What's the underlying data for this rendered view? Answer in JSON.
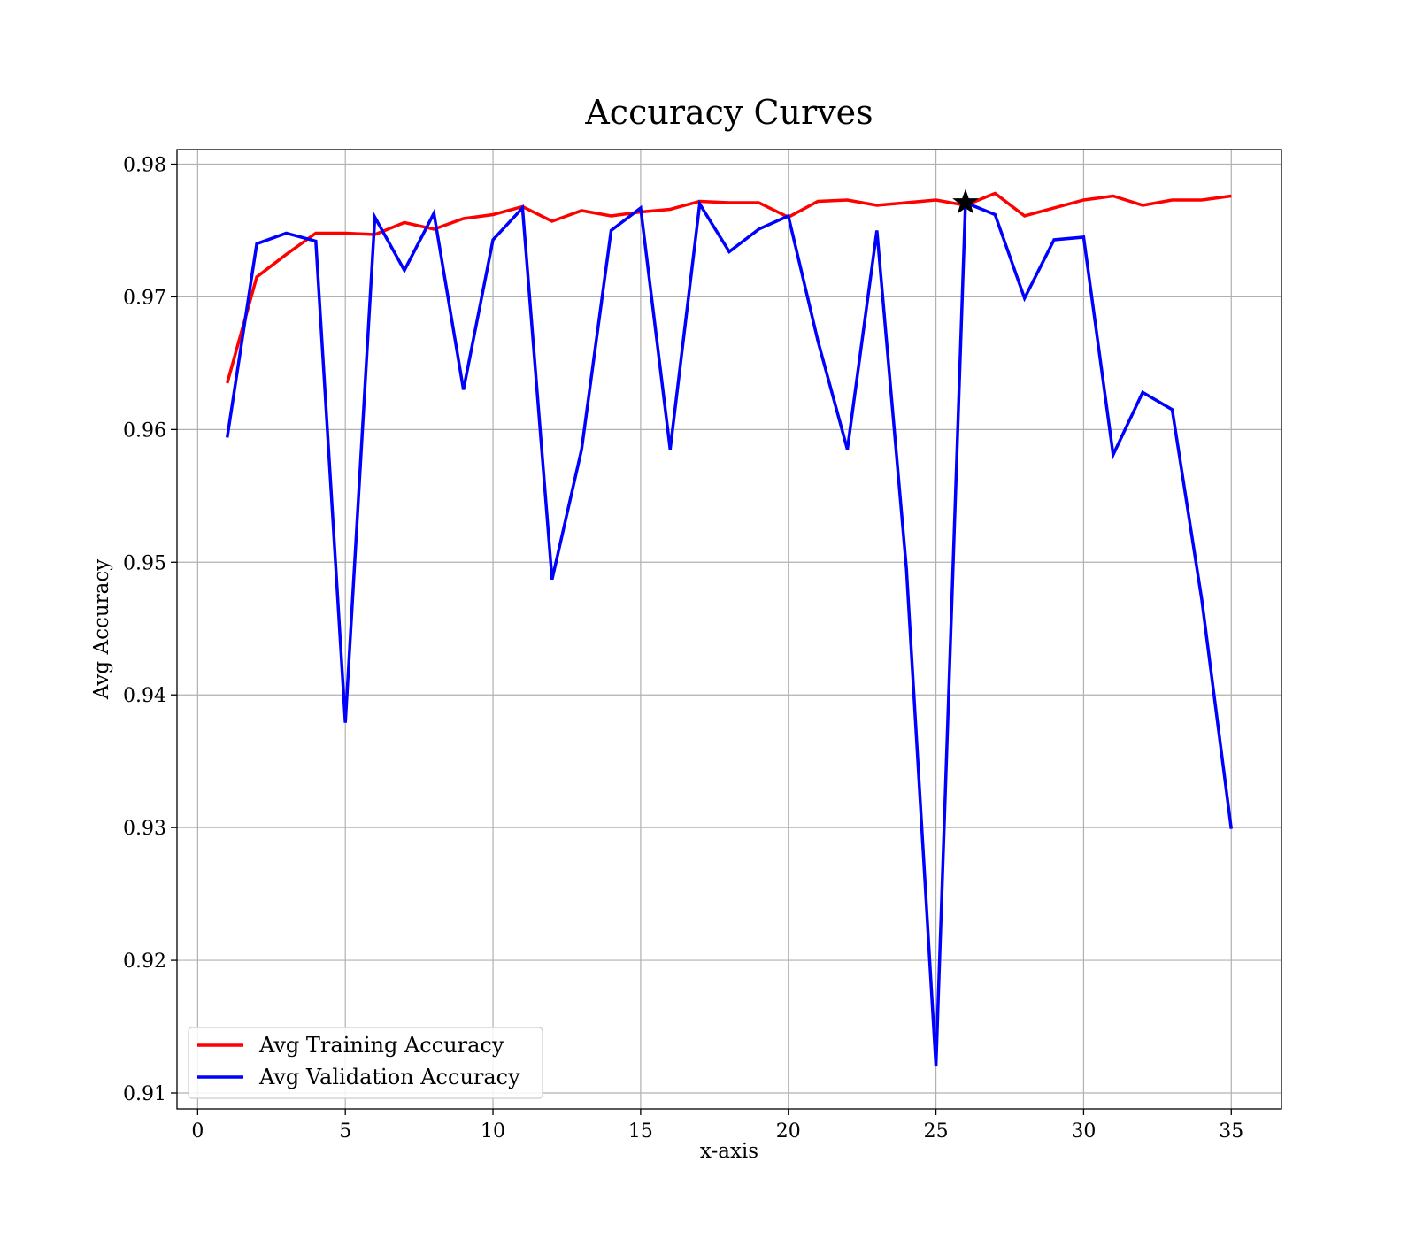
{
  "chart_data": {
    "type": "line",
    "title": "Accuracy Curves",
    "xlabel": "x-axis",
    "ylabel": "Avg Accuracy",
    "xlim": [
      -0.7,
      36.7
    ],
    "ylim": [
      0.9088,
      0.9811
    ],
    "xticks": [
      0,
      5,
      10,
      15,
      20,
      25,
      30,
      35
    ],
    "yticks": [
      0.91,
      0.92,
      0.93,
      0.94,
      0.95,
      0.96,
      0.97,
      0.98
    ],
    "xtick_labels": [
      "0",
      "5",
      "10",
      "15",
      "20",
      "25",
      "30",
      "35"
    ],
    "ytick_labels": [
      "0.91",
      "0.92",
      "0.93",
      "0.94",
      "0.95",
      "0.96",
      "0.97",
      "0.98"
    ],
    "grid": true,
    "legend_position": "lower-left",
    "x": [
      1,
      2,
      3,
      4,
      5,
      6,
      7,
      8,
      9,
      10,
      11,
      12,
      13,
      14,
      15,
      16,
      17,
      18,
      19,
      20,
      21,
      22,
      23,
      24,
      25,
      26,
      27,
      28,
      29,
      30,
      31,
      32,
      33,
      34,
      35
    ],
    "series": [
      {
        "name": "Avg Training Accuracy",
        "color": "#ff0000",
        "values": [
          0.9635,
          0.9715,
          0.9732,
          0.9748,
          0.9748,
          0.9747,
          0.9756,
          0.9751,
          0.9759,
          0.9762,
          0.9768,
          0.9757,
          0.9765,
          0.9761,
          0.9764,
          0.9766,
          0.9772,
          0.9771,
          0.9771,
          0.976,
          0.9772,
          0.9773,
          0.9769,
          0.9771,
          0.9773,
          0.9769,
          0.9778,
          0.9761,
          0.9767,
          0.9773,
          0.9776,
          0.9769,
          0.9773,
          0.9773,
          0.9776
        ]
      },
      {
        "name": "Avg Validation Accuracy",
        "color": "#0000ff",
        "values": [
          0.9594,
          0.974,
          0.9748,
          0.9742,
          0.9379,
          0.976,
          0.972,
          0.9763,
          0.963,
          0.9743,
          0.9767,
          0.9487,
          0.9585,
          0.975,
          0.9767,
          0.9585,
          0.977,
          0.9734,
          0.9751,
          0.9761,
          0.9667,
          0.9585,
          0.975,
          0.9495,
          0.912,
          0.9771,
          0.9762,
          0.9699,
          0.9743,
          0.9745,
          0.9581,
          0.9628,
          0.9615,
          0.9472,
          0.9299
        ]
      }
    ],
    "marker": {
      "shape": "star",
      "color": "#000000",
      "x": 26,
      "y": 0.9771
    }
  }
}
